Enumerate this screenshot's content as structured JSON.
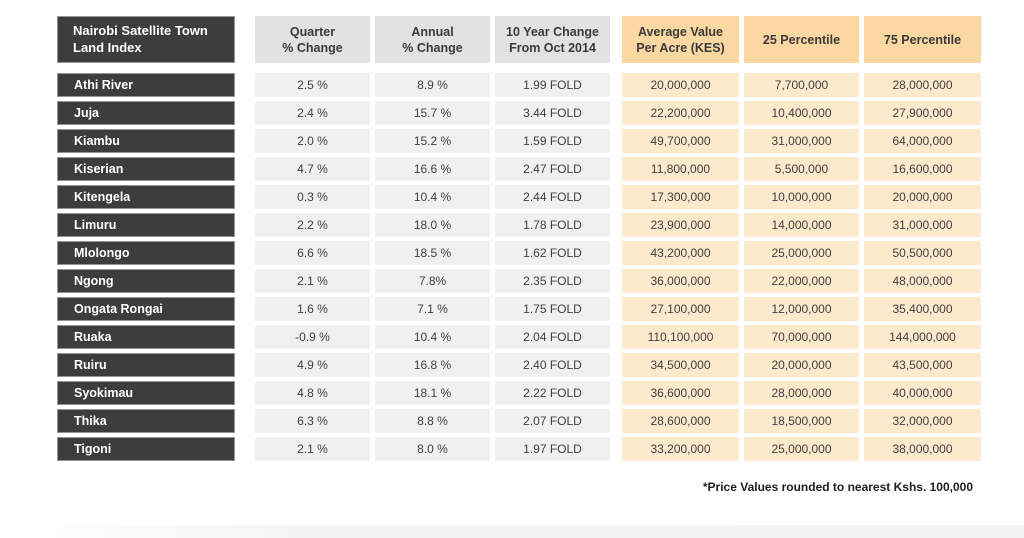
{
  "chart_data": {
    "type": "table",
    "title": "Nairobi Satellite Town Land Index",
    "title_display": "Nairobi Satellite Town\nLand Index",
    "column_headers": [
      "Quarter % Change",
      "Annual % Change",
      "10 Year Change From Oct 2014",
      "Average Value Per Acre (KES)",
      "25 Percentile",
      "75 Percentile"
    ],
    "column_headers_display": [
      "Quarter\n% Change",
      "Annual\n% Change",
      "10 Year Change\nFrom Oct 2014",
      "Average Value\nPer Acre (KES)",
      "25 Percentile",
      "75 Percentile"
    ],
    "rows": [
      {
        "town": "Athi River",
        "quarter_pct": "2.5 %",
        "annual_pct": "8.9 %",
        "ten_year_change": "1.99 FOLD",
        "avg_value_kes": "20,000,000",
        "percentile_25": "7,700,000",
        "percentile_75": "28,000,000"
      },
      {
        "town": "Juja",
        "quarter_pct": "2.4 %",
        "annual_pct": "15.7 %",
        "ten_year_change": "3.44 FOLD",
        "avg_value_kes": "22,200,000",
        "percentile_25": "10,400,000",
        "percentile_75": "27,900,000"
      },
      {
        "town": "Kiambu",
        "quarter_pct": "2.0 %",
        "annual_pct": "15.2 %",
        "ten_year_change": "1.59 FOLD",
        "avg_value_kes": "49,700,000",
        "percentile_25": "31,000,000",
        "percentile_75": "64,000,000"
      },
      {
        "town": "Kiserian",
        "quarter_pct": "4.7 %",
        "annual_pct": "16.6 %",
        "ten_year_change": "2.47 FOLD",
        "avg_value_kes": "11,800,000",
        "percentile_25": "5,500,000",
        "percentile_75": "16,600,000"
      },
      {
        "town": "Kitengela",
        "quarter_pct": "0.3 %",
        "annual_pct": "10.4 %",
        "ten_year_change": "2.44 FOLD",
        "avg_value_kes": "17,300,000",
        "percentile_25": "10,000,000",
        "percentile_75": "20,000,000"
      },
      {
        "town": "Limuru",
        "quarter_pct": "2.2 %",
        "annual_pct": "18.0 %",
        "ten_year_change": "1.78 FOLD",
        "avg_value_kes": "23,900,000",
        "percentile_25": "14,000,000",
        "percentile_75": "31,000,000"
      },
      {
        "town": "Mlolongo",
        "quarter_pct": "6.6 %",
        "annual_pct": "18.5 %",
        "ten_year_change": "1.62 FOLD",
        "avg_value_kes": "43,200,000",
        "percentile_25": "25,000,000",
        "percentile_75": "50,500,000"
      },
      {
        "town": "Ngong",
        "quarter_pct": "2.1 %",
        "annual_pct": "7.8%",
        "ten_year_change": "2.35 FOLD",
        "avg_value_kes": "36,000,000",
        "percentile_25": "22,000,000",
        "percentile_75": "48,000,000"
      },
      {
        "town": "Ongata Rongai",
        "quarter_pct": "1.6 %",
        "annual_pct": "7.1 %",
        "ten_year_change": "1.75 FOLD",
        "avg_value_kes": "27,100,000",
        "percentile_25": "12,000,000",
        "percentile_75": "35,400,000"
      },
      {
        "town": "Ruaka",
        "quarter_pct": "-0.9 %",
        "annual_pct": "10.4 %",
        "ten_year_change": "2.04 FOLD",
        "avg_value_kes": "110,100,000",
        "percentile_25": "70,000,000",
        "percentile_75": "144,000,000"
      },
      {
        "town": "Ruiru",
        "quarter_pct": "4.9 %",
        "annual_pct": "16.8 %",
        "ten_year_change": "2.40 FOLD",
        "avg_value_kes": "34,500,000",
        "percentile_25": "20,000,000",
        "percentile_75": "43,500,000"
      },
      {
        "town": "Syokimau",
        "quarter_pct": "4.8 %",
        "annual_pct": "18.1 %",
        "ten_year_change": "2.22 FOLD",
        "avg_value_kes": "36,600,000",
        "percentile_25": "28,000,000",
        "percentile_75": "40,000,000"
      },
      {
        "town": "Thika",
        "quarter_pct": "6.3 %",
        "annual_pct": "8.8 %",
        "ten_year_change": "2.07 FOLD",
        "avg_value_kes": "28,600,000",
        "percentile_25": "18,500,000",
        "percentile_75": "32,000,000"
      },
      {
        "town": "Tigoni",
        "quarter_pct": "2.1 %",
        "annual_pct": "8.0 %",
        "ten_year_change": "1.97 FOLD",
        "avg_value_kes": "33,200,000",
        "percentile_25": "25,000,000",
        "percentile_75": "38,000,000"
      }
    ],
    "layout": {
      "grid": "off",
      "header_groups": [
        "gray",
        "gray",
        "gray",
        "orange",
        "orange",
        "orange"
      ]
    }
  },
  "footnote": "*Price Values rounded to nearest Kshs. 100,000",
  "colors": {
    "dark_cell": "#3d3d3d",
    "dark_cell_border": "#969696",
    "gray_header": "#e2e2e2",
    "gray_cell": "#f0f0f0",
    "orange_header": "#fbd8a2",
    "orange_cell": "#fdeacd",
    "text": "#3f3f3f",
    "label_text": "#ffffff"
  }
}
